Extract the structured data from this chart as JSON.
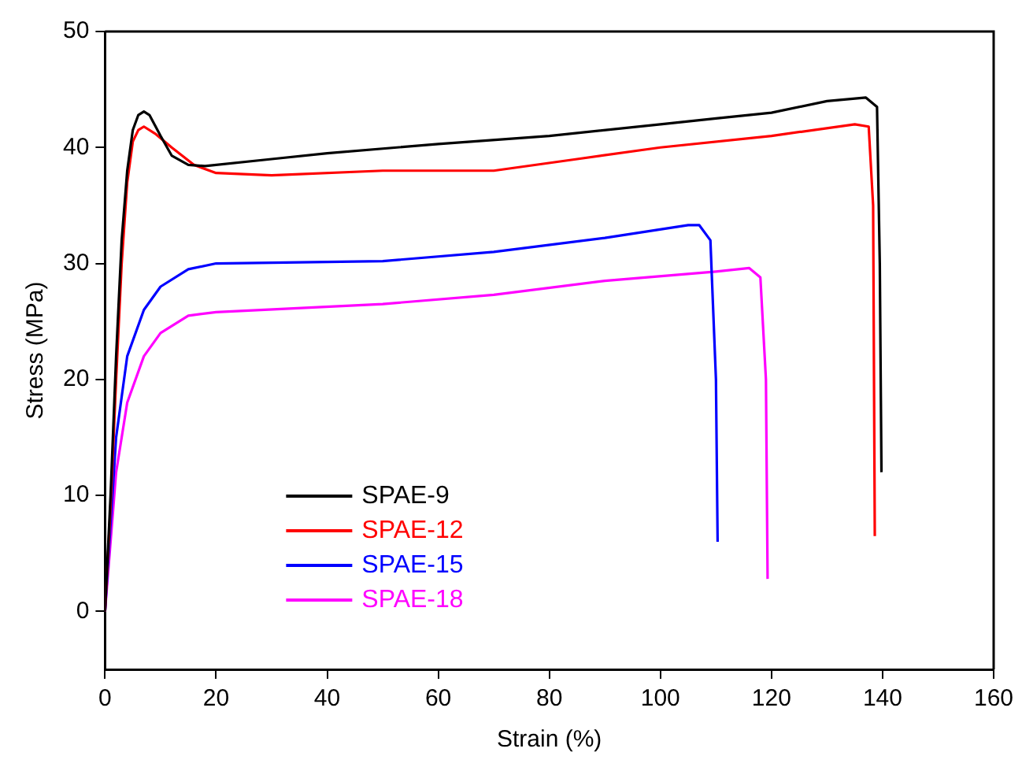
{
  "chart_data": {
    "type": "line",
    "xlabel": "Strain (%)",
    "ylabel": "Stress (MPa)",
    "xlim": [
      0,
      160
    ],
    "xticks": [
      0,
      20,
      40,
      60,
      80,
      100,
      120,
      140,
      160
    ],
    "ylim": [
      -5,
      50
    ],
    "yticks": [
      0,
      10,
      20,
      30,
      40,
      50
    ],
    "grid": false,
    "legend": "bottom left",
    "marker": "none",
    "line_style": "solid",
    "series": [
      {
        "name": "SPAE-9",
        "color": "#000000",
        "x": [
          0,
          1,
          2,
          3,
          4,
          5,
          6,
          7,
          8,
          10,
          12,
          15,
          18,
          30,
          40,
          60,
          80,
          100,
          110,
          120,
          130,
          137,
          139,
          139.5,
          139.8
        ],
        "values": [
          0,
          10,
          22,
          32,
          38,
          41.5,
          42.8,
          43.1,
          42.8,
          41,
          39.3,
          38.5,
          38.4,
          39,
          39.5,
          40.3,
          41,
          42,
          42.5,
          43,
          44,
          44.3,
          43.5,
          30,
          12
        ]
      },
      {
        "name": "SPAE-12",
        "color": "#ff0000",
        "x": [
          0,
          1,
          2,
          3,
          4,
          5,
          6,
          7,
          9,
          12,
          16,
          20,
          30,
          50,
          70,
          85,
          100,
          120,
          135,
          137.5,
          138.3,
          138.6
        ],
        "values": [
          0,
          9,
          20,
          30,
          37,
          40.5,
          41.5,
          41.8,
          41.2,
          40,
          38.5,
          37.8,
          37.6,
          38,
          38,
          39,
          40,
          41,
          42,
          41.8,
          35,
          6.5
        ]
      },
      {
        "name": "SPAE-15",
        "color": "#0000ff",
        "x": [
          0,
          2,
          4,
          7,
          10,
          15,
          20,
          50,
          70,
          90,
          105,
          107,
          109,
          110,
          110.3
        ],
        "values": [
          0,
          15,
          22,
          26,
          28,
          29.5,
          30,
          30.2,
          31,
          32.2,
          33.3,
          33.3,
          32,
          20,
          6
        ]
      },
      {
        "name": "SPAE-18",
        "color": "#ff00ff",
        "x": [
          0,
          2,
          4,
          7,
          10,
          15,
          20,
          50,
          70,
          90,
          110,
          116,
          118,
          119,
          119.3
        ],
        "values": [
          0,
          12,
          18,
          22,
          24,
          25.5,
          25.8,
          26.5,
          27.3,
          28.5,
          29.3,
          29.6,
          28.8,
          20,
          2.8
        ]
      }
    ]
  }
}
